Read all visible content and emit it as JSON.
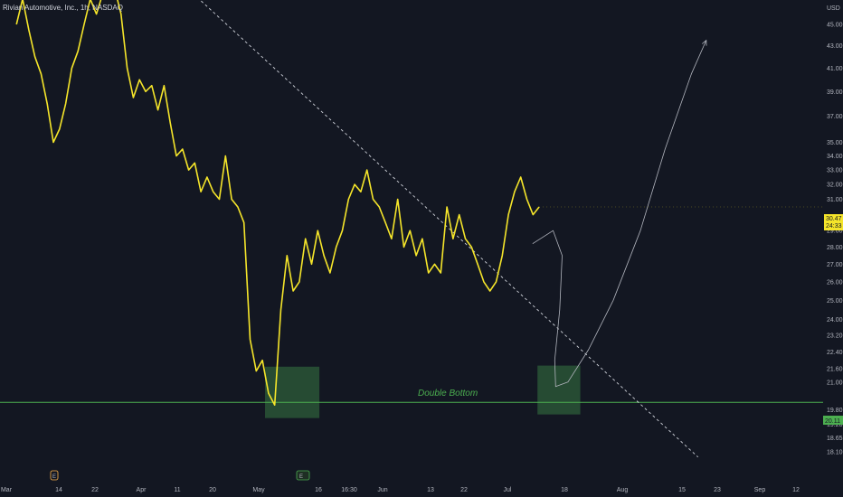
{
  "header": {
    "symbol_title": "Rivian Automotive, Inc., 1h, NASDAQ",
    "currency": "USD"
  },
  "colors": {
    "background": "#131722",
    "price_line": "#f5e52a",
    "support_line": "#4caf50",
    "zone_fill": "#2e5e3a",
    "trendline": "#d1d4dc",
    "projection": "#b2b5be",
    "axis_text": "#b2b5be"
  },
  "annotations": {
    "pattern_label": "Double Bottom"
  },
  "price_tags": {
    "last_price": "30.47",
    "countdown": "24:33",
    "support_level": "20.11"
  },
  "axis_badges": {
    "earnings_marker": "E",
    "event_marker": "E"
  },
  "chart_data": {
    "type": "line",
    "title": "Rivian Automotive, Inc., 1h, NASDAQ",
    "y_scale": "log",
    "ylim": [
      17.8,
      49.0
    ],
    "grid": false,
    "legend": "none",
    "x_ticks": [
      "Mar",
      "14",
      "22",
      "Apr",
      "11",
      "20",
      "May",
      "16",
      "16:30",
      "Jun",
      "13",
      "22",
      "Jul",
      "18",
      "Aug",
      "15",
      "23",
      "Sep",
      "12"
    ],
    "y_ticks": [
      "45.00",
      "43.00",
      "41.00",
      "39.00",
      "37.00",
      "35.00",
      "34.00",
      "33.00",
      "32.00",
      "31.00",
      "29.00",
      "28.00",
      "27.00",
      "26.00",
      "25.00",
      "24.00",
      "23.20",
      "22.40",
      "21.60",
      "21.00",
      "19.80",
      "19.20",
      "18.65",
      "18.10"
    ],
    "series": [
      {
        "values": [
          45.0,
          47.5,
          44.5,
          42.0,
          40.5,
          38.0,
          35.0,
          36.0,
          38.0,
          41.0,
          42.5,
          45.0,
          47.5,
          46.0,
          48.0,
          47.5,
          48.5,
          46.0,
          41.0,
          38.5,
          40.0,
          39.0,
          39.5,
          37.5,
          39.5,
          36.5,
          34.0,
          34.5,
          33.0,
          33.5,
          31.5,
          32.5,
          31.5,
          31.0,
          34.0,
          31.0,
          30.5,
          29.5,
          23.0,
          21.5,
          22.0,
          20.5,
          20.0,
          24.5,
          27.5,
          25.5,
          26.0,
          28.5,
          27.0,
          29.0,
          27.5,
          26.5,
          28.0,
          29.0,
          31.0,
          32.0,
          31.5,
          33.0,
          31.0,
          30.5,
          29.5,
          28.5,
          31.0,
          28.0,
          29.0,
          27.5,
          28.5,
          26.5,
          27.0,
          26.5,
          30.5,
          28.5,
          30.0,
          28.5,
          28.0,
          27.0,
          26.0,
          25.5,
          26.0,
          27.5,
          30.0,
          31.5,
          32.5,
          31.0,
          30.0,
          30.5
        ]
      }
    ],
    "support_level": 20.11,
    "double_bottom_zones": [
      {
        "x_from": 0.322,
        "x_to": 0.388,
        "y_low": 19.45,
        "y_high": 21.7
      },
      {
        "x_from": 0.653,
        "x_to": 0.705,
        "y_low": 19.6,
        "y_high": 21.75
      }
    ],
    "trendline": {
      "x0": 0.225,
      "y0": 48.8,
      "x1": 0.848,
      "y1": 17.9
    },
    "projection_path": {
      "points": [
        [
          0.647,
          28.2
        ],
        [
          0.672,
          29.0
        ],
        [
          0.683,
          27.5
        ],
        [
          0.68,
          24.5
        ],
        [
          0.674,
          22.0
        ],
        [
          0.675,
          20.8
        ],
        [
          0.69,
          21.0
        ],
        [
          0.715,
          22.5
        ],
        [
          0.745,
          25.0
        ],
        [
          0.778,
          29.0
        ],
        [
          0.808,
          34.5
        ],
        [
          0.84,
          40.5
        ],
        [
          0.858,
          43.5
        ]
      ]
    }
  }
}
